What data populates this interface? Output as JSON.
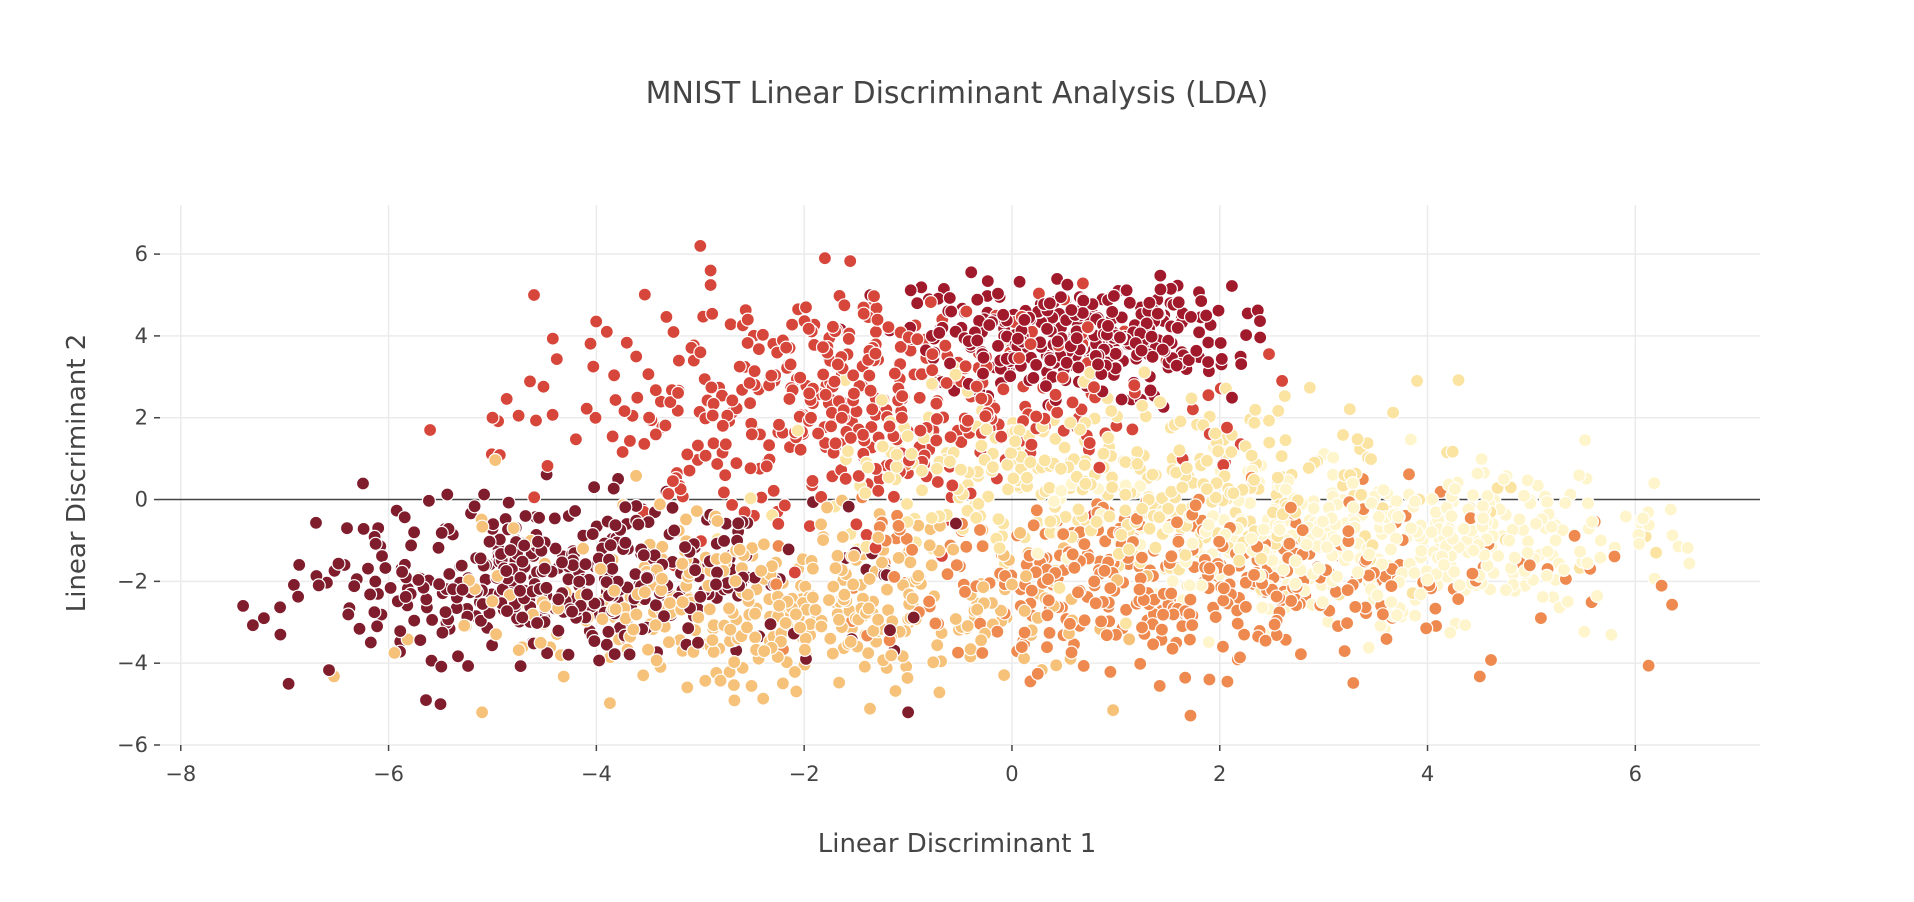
{
  "chart_data": {
    "type": "scatter",
    "title": "MNIST Linear Discriminant Analysis (LDA)",
    "xlabel": "Linear Discriminant 1",
    "ylabel": "Linear Discriminant 2",
    "xlim": [
      -8.2,
      7.2
    ],
    "ylim": [
      -6.0,
      7.2
    ],
    "x_ticks": [
      -8,
      -6,
      -4,
      -2,
      0,
      2,
      4,
      6
    ],
    "x_tick_labels": [
      "−8",
      "−6",
      "−4",
      "−2",
      "0",
      "2",
      "4",
      "6"
    ],
    "y_ticks": [
      -6,
      -4,
      -2,
      0,
      2,
      4,
      6
    ],
    "y_tick_labels": [
      "−6",
      "−4",
      "−2",
      "0",
      "2",
      "4",
      "6"
    ],
    "grid": true,
    "zero_line": "y",
    "legend": "none",
    "marker_outline": "#ffffff",
    "clusters": [
      {
        "color": "#7f1d2d",
        "center": [
          -4.4,
          -1.9
        ],
        "spread": [
          1.2,
          0.9
        ],
        "count": 430
      },
      {
        "color": "#a11a2b",
        "center": [
          0.6,
          3.9
        ],
        "spread": [
          0.75,
          0.65
        ],
        "count": 360
      },
      {
        "color": "#d6463a",
        "center": [
          -1.6,
          2.3
        ],
        "spread": [
          1.4,
          1.3
        ],
        "count": 460
      },
      {
        "color": "#ee8a4f",
        "center": [
          1.6,
          -1.9
        ],
        "spread": [
          1.6,
          1.0
        ],
        "count": 420
      },
      {
        "color": "#f6c27a",
        "center": [
          -2.2,
          -2.6
        ],
        "spread": [
          1.4,
          1.0
        ],
        "count": 420
      },
      {
        "color": "#fbe3a1",
        "center": [
          1.0,
          0.4
        ],
        "spread": [
          1.4,
          1.2
        ],
        "count": 380
      },
      {
        "color": "#fff5cc",
        "center": [
          3.6,
          -1.0
        ],
        "spread": [
          1.3,
          0.9
        ],
        "count": 420
      }
    ],
    "outliers": [
      {
        "x": -7.4,
        "y": -2.6,
        "color": "#7f1d2d"
      },
      {
        "x": -7.2,
        "y": -2.9,
        "color": "#7f1d2d"
      },
      {
        "x": -6.4,
        "y": -0.7,
        "color": "#7f1d2d"
      },
      {
        "x": -5.5,
        "y": -5.0,
        "color": "#7f1d2d"
      },
      {
        "x": -1.0,
        "y": -5.2,
        "color": "#7f1d2d"
      },
      {
        "x": -3.0,
        "y": 6.2,
        "color": "#d6463a"
      },
      {
        "x": -2.9,
        "y": 5.6,
        "color": "#d6463a"
      },
      {
        "x": -1.8,
        "y": 5.9,
        "color": "#d6463a"
      },
      {
        "x": -4.6,
        "y": 5.0,
        "color": "#d6463a"
      },
      {
        "x": -5.6,
        "y": 1.7,
        "color": "#d6463a"
      },
      {
        "x": -5.0,
        "y": 2.0,
        "color": "#d6463a"
      },
      {
        "x": -3.9,
        "y": 4.1,
        "color": "#d6463a"
      },
      {
        "x": 3.9,
        "y": 2.9,
        "color": "#fbe3a1"
      },
      {
        "x": 6.1,
        "y": -0.9,
        "color": "#fbe3a1"
      },
      {
        "x": 6.2,
        "y": -1.3,
        "color": "#fbe3a1"
      },
      {
        "x": -5.1,
        "y": -5.2,
        "color": "#f6c27a"
      },
      {
        "x": 1.9,
        "y": -4.4,
        "color": "#ee8a4f"
      },
      {
        "x": 2.6,
        "y": 2.9,
        "color": "#d6463a"
      }
    ]
  }
}
